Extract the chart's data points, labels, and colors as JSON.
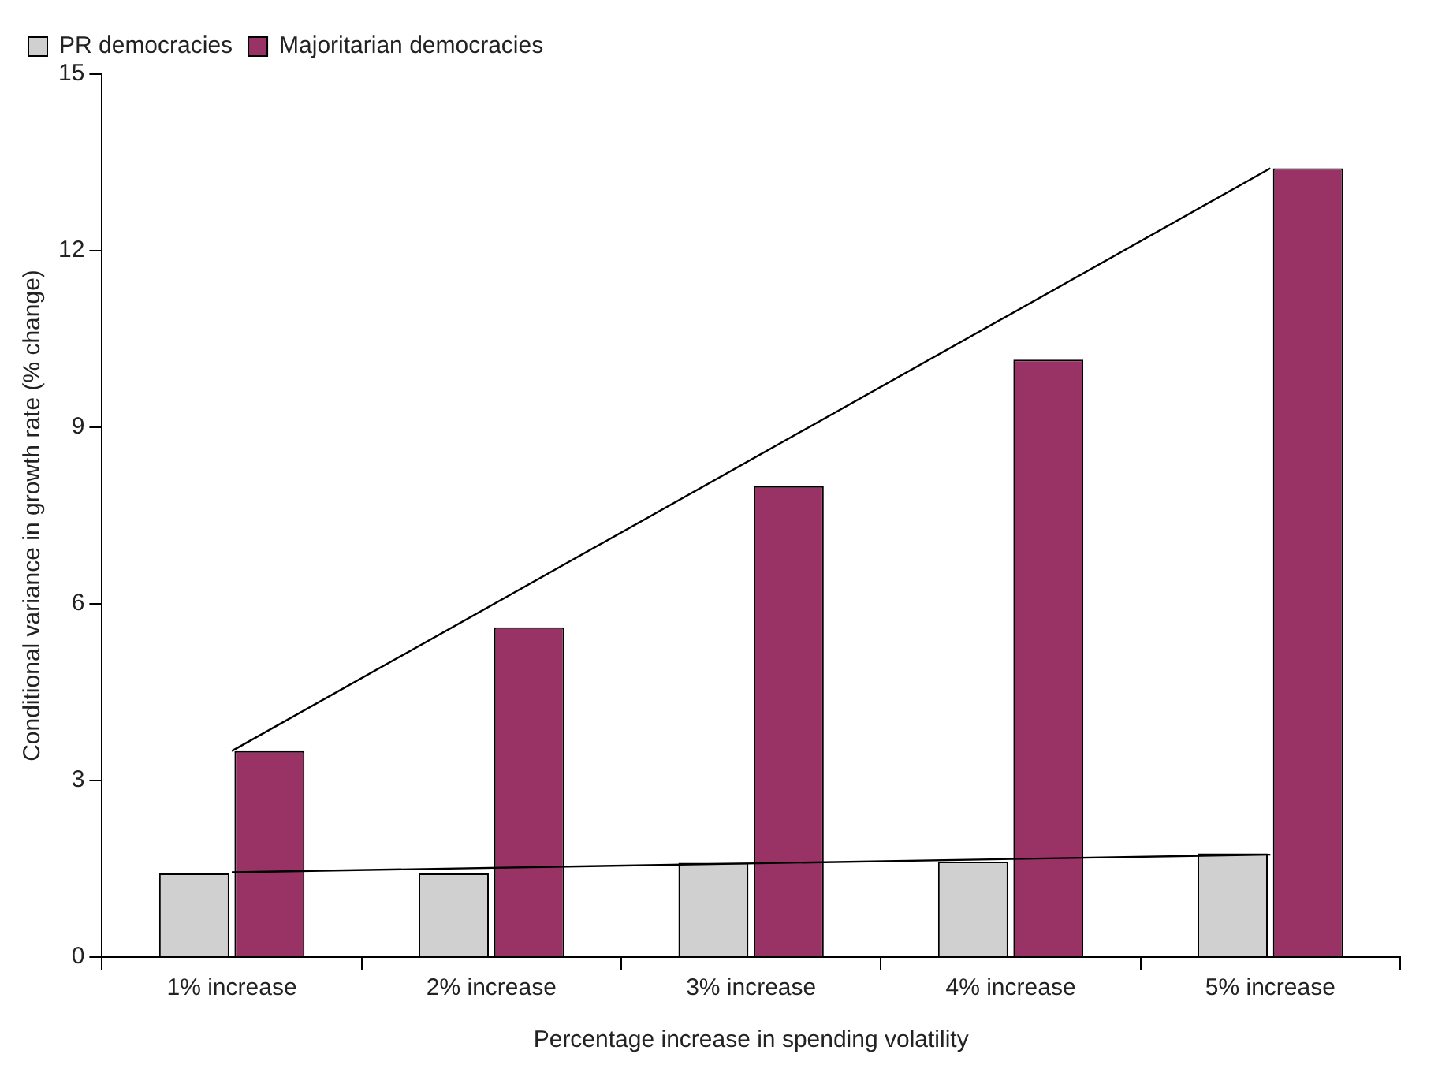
{
  "chart_data": {
    "type": "bar",
    "xlabel": "Percentage increase in spending volatility",
    "ylabel": "Conditional variance in growth rate (% change)",
    "categories": [
      "1% increase",
      "2% increase",
      "3% increase",
      "4% increase",
      "5% increase"
    ],
    "series": [
      {
        "name": "PR democracies",
        "color": "#d0d0d0",
        "values": [
          1.42,
          1.42,
          1.6,
          1.62,
          1.76
        ]
      },
      {
        "name": "Majoritarian democracies",
        "color": "#993366",
        "values": [
          3.5,
          5.6,
          8.0,
          10.15,
          13.4
        ]
      },
      {
        "type": "line",
        "color": "#000000",
        "x": [
          "1% increase",
          "5% increase"
        ],
        "values": [
          3.5,
          13.4
        ]
      },
      {
        "type": "line",
        "color": "#000000",
        "x": [
          "1% increase",
          "5% increase"
        ],
        "values": [
          1.44,
          1.74
        ]
      }
    ],
    "ylim": [
      0,
      15
    ],
    "yticks": [
      0,
      3,
      6,
      9,
      12,
      15
    ],
    "grid": false,
    "legend": "top left",
    "marker": "none",
    "line_style": "solid"
  }
}
